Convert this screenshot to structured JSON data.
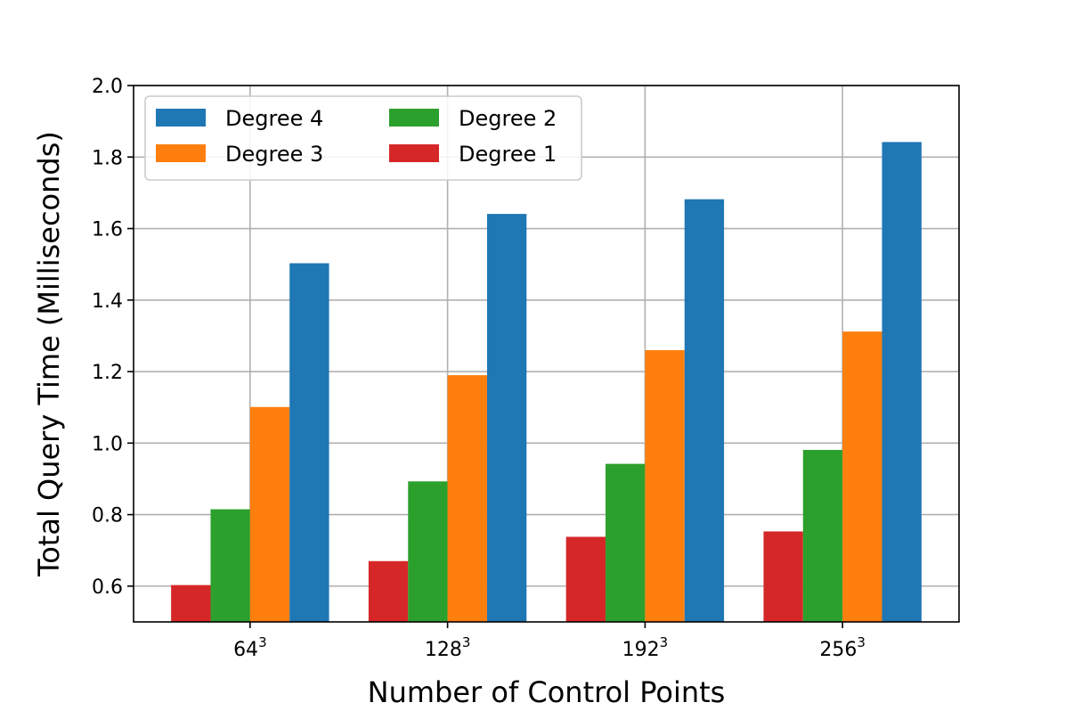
{
  "chart_data": {
    "type": "bar",
    "title": "",
    "xlabel": "Number of Control Points",
    "ylabel": "Total Query Time (Milliseconds)",
    "categories": [
      {
        "base": "64",
        "exp": "3"
      },
      {
        "base": "128",
        "exp": "3"
      },
      {
        "base": "192",
        "exp": "3"
      },
      {
        "base": "256",
        "exp": "3"
      }
    ],
    "ylim": [
      0.5,
      2.0
    ],
    "yticks": [
      "0.6",
      "0.8",
      "1.0",
      "1.2",
      "1.4",
      "1.6",
      "1.8",
      "2.0"
    ],
    "grid": true,
    "legend_position": "top-left",
    "legend_columns": 2,
    "series": [
      {
        "name": "Degree 1",
        "color": "#d62728",
        "values": [
          0.603,
          0.67,
          0.738,
          0.753
        ]
      },
      {
        "name": "Degree 2",
        "color": "#2ca02c",
        "values": [
          0.815,
          0.893,
          0.942,
          0.981
        ]
      },
      {
        "name": "Degree 3",
        "color": "#ff7f0e",
        "values": [
          1.101,
          1.19,
          1.26,
          1.312
        ]
      },
      {
        "name": "Degree 4",
        "color": "#1f77b4",
        "values": [
          1.503,
          1.641,
          1.682,
          1.842
        ]
      }
    ],
    "legend_order": [
      "Degree 4",
      "Degree 3",
      "Degree 2",
      "Degree 1"
    ]
  }
}
